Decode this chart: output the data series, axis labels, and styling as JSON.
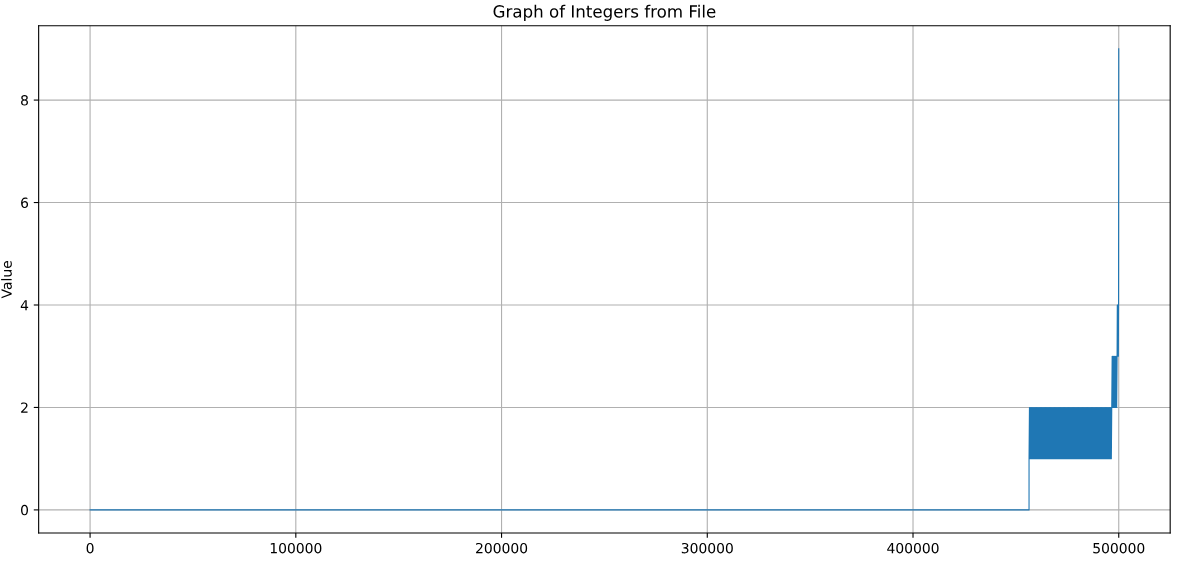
{
  "chart_data": {
    "type": "line",
    "title": "Graph of Integers from File",
    "ylabel": "Value",
    "x": [
      0,
      456399,
      456400,
      456600,
      456800,
      457000,
      457200,
      457400,
      457600,
      457800,
      458000,
      458200,
      458400,
      458600,
      458800,
      459000,
      459200,
      459400,
      459600,
      459800,
      460000,
      460200,
      460400,
      460600,
      460800,
      461000,
      461200,
      461400,
      461600,
      461800,
      462000,
      462200,
      462400,
      462600,
      462800,
      463000,
      463200,
      463400,
      463600,
      463800,
      464000,
      464200,
      464400,
      464600,
      464800,
      465000,
      465200,
      465400,
      465600,
      465800,
      466000,
      466200,
      466400,
      466600,
      466800,
      467000,
      467200,
      467400,
      467600,
      467800,
      468000,
      468200,
      468400,
      468600,
      468800,
      469000,
      469200,
      469400,
      469600,
      469800,
      470000,
      470200,
      470400,
      470600,
      470800,
      471000,
      471200,
      471400,
      471600,
      471800,
      472000,
      472200,
      472400,
      472600,
      472800,
      473000,
      473200,
      473400,
      473600,
      473800,
      474000,
      474200,
      474400,
      474600,
      474800,
      475000,
      475200,
      475400,
      475600,
      475800,
      476000,
      476200,
      476400,
      476600,
      476800,
      477000,
      477200,
      477400,
      477600,
      477800,
      478000,
      478200,
      478400,
      478600,
      478800,
      479000,
      479200,
      479400,
      479600,
      479800,
      480000,
      480200,
      480400,
      480600,
      480800,
      481000,
      481200,
      481400,
      481600,
      481800,
      482000,
      482200,
      482400,
      482600,
      482800,
      483000,
      483200,
      483400,
      483600,
      483800,
      484000,
      484200,
      484400,
      484600,
      484800,
      485000,
      485200,
      485400,
      485600,
      485800,
      486000,
      486200,
      486400,
      486600,
      486800,
      487000,
      487200,
      487400,
      487600,
      487800,
      488000,
      488200,
      488400,
      488600,
      488800,
      489000,
      489200,
      489400,
      489600,
      489800,
      490000,
      490200,
      490400,
      490600,
      490800,
      491000,
      491200,
      491400,
      491600,
      491800,
      492000,
      492200,
      492400,
      492600,
      492800,
      493000,
      493200,
      493400,
      493600,
      493800,
      494000,
      494200,
      494400,
      494600,
      494800,
      495000,
      495200,
      495400,
      495600,
      495800,
      496000,
      496200,
      496400,
      496600,
      496800,
      497000,
      497200,
      497400,
      497600,
      497800,
      498000,
      498200,
      498400,
      498600,
      498800,
      499000,
      499200,
      499300,
      499400,
      499500,
      499600,
      499700,
      499800,
      499900,
      499999
    ],
    "values": [
      0,
      0,
      1,
      2,
      1,
      2,
      1,
      2,
      1,
      2,
      1,
      2,
      1,
      2,
      1,
      2,
      1,
      2,
      1,
      2,
      1,
      2,
      1,
      2,
      1,
      2,
      1,
      2,
      1,
      2,
      1,
      2,
      1,
      2,
      1,
      2,
      1,
      2,
      1,
      2,
      1,
      2,
      1,
      2,
      1,
      2,
      1,
      2,
      1,
      2,
      1,
      2,
      1,
      2,
      1,
      2,
      1,
      2,
      1,
      2,
      1,
      2,
      1,
      2,
      1,
      2,
      1,
      2,
      1,
      2,
      1,
      2,
      1,
      2,
      1,
      2,
      1,
      2,
      1,
      2,
      1,
      2,
      1,
      2,
      1,
      2,
      1,
      2,
      1,
      2,
      1,
      2,
      1,
      2,
      1,
      2,
      1,
      2,
      1,
      2,
      1,
      2,
      1,
      2,
      1,
      2,
      1,
      2,
      1,
      2,
      1,
      2,
      1,
      2,
      1,
      2,
      1,
      2,
      1,
      2,
      1,
      2,
      1,
      2,
      1,
      2,
      1,
      2,
      1,
      2,
      1,
      2,
      1,
      2,
      1,
      2,
      1,
      2,
      1,
      2,
      1,
      2,
      1,
      2,
      1,
      2,
      1,
      2,
      1,
      2,
      1,
      2,
      1,
      2,
      1,
      2,
      1,
      2,
      1,
      2,
      1,
      2,
      1,
      2,
      1,
      2,
      1,
      2,
      1,
      2,
      1,
      2,
      1,
      2,
      1,
      2,
      1,
      2,
      1,
      2,
      1,
      2,
      1,
      2,
      1,
      2,
      1,
      2,
      1,
      2,
      1,
      2,
      1,
      2,
      1,
      2,
      1,
      2,
      1,
      2,
      1,
      2,
      1,
      2,
      3,
      2,
      3,
      2,
      3,
      2,
      3,
      2,
      3,
      2,
      3,
      2,
      3,
      4,
      3,
      4,
      3,
      4,
      3,
      4,
      9
    ],
    "color": "#1f77b4",
    "xlim": [
      -25000,
      525000
    ],
    "xticks": [
      0,
      100000,
      200000,
      300000,
      400000,
      500000
    ],
    "ylim": [
      -0.45,
      9.45
    ],
    "yticks": [
      0,
      2,
      4,
      6,
      8
    ],
    "grid": true
  }
}
